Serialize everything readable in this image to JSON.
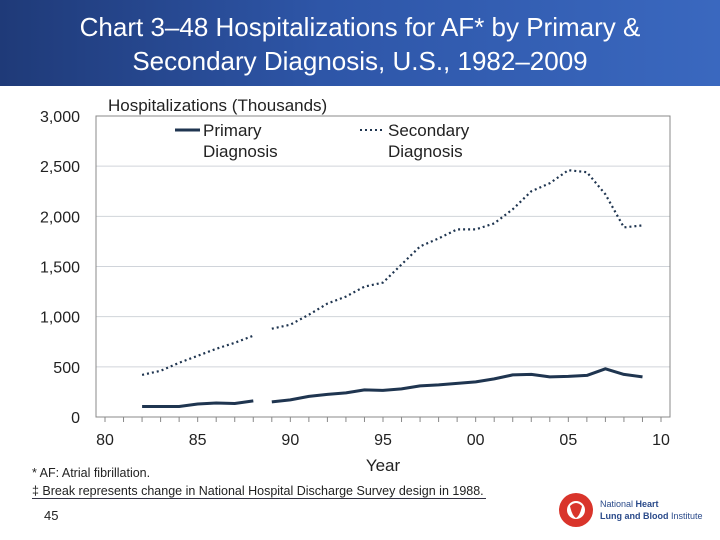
{
  "header": {
    "title_line1": "Chart 3–48 Hospitalizations for AF* by Primary &",
    "title_line2": "Secondary Diagnosis, U.S., 1982–2009"
  },
  "chart_data": {
    "type": "line",
    "ylabel": "Hospitalizations (Thousands)",
    "xlabel": "Year",
    "xlim": [
      1980,
      2010
    ],
    "ylim": [
      0,
      3000
    ],
    "x_tick_labels": [
      "80",
      "85",
      "90",
      "95",
      "00",
      "05",
      "10"
    ],
    "y_tick_labels": [
      "0",
      "500",
      "1,000",
      "1,500",
      "2,000",
      "2,500",
      "3,000"
    ],
    "grid": "horizontal",
    "legend_placement": "top",
    "x": [
      1982,
      1983,
      1984,
      1985,
      1986,
      1987,
      1988,
      1989,
      1990,
      1991,
      1992,
      1993,
      1994,
      1995,
      1996,
      1997,
      1998,
      1999,
      2000,
      2001,
      2002,
      2003,
      2004,
      2005,
      2006,
      2007,
      2008,
      2009
    ],
    "break_after": 1988,
    "series": [
      {
        "name": "Primary Diagnosis",
        "legend_line1": "Primary",
        "legend_line2": "Diagnosis",
        "style": "solid",
        "color": "#1f3550",
        "values": [
          105,
          105,
          105,
          130,
          140,
          135,
          160,
          150,
          170,
          205,
          225,
          240,
          270,
          265,
          280,
          310,
          320,
          335,
          350,
          380,
          420,
          425,
          400,
          405,
          415,
          480,
          425,
          400
        ]
      },
      {
        "name": "Secondary Diagnosis",
        "legend_line1": "Secondary",
        "legend_line2": "Diagnosis",
        "style": "dotted",
        "color": "#1f3550",
        "values": [
          420,
          460,
          540,
          610,
          680,
          740,
          810,
          880,
          920,
          1020,
          1130,
          1200,
          1300,
          1340,
          1520,
          1700,
          1780,
          1870,
          1870,
          1930,
          2070,
          2250,
          2330,
          2460,
          2440,
          2220,
          1890,
          1910
        ]
      }
    ]
  },
  "footnotes": {
    "note1": "* AF: Atrial fibrillation.",
    "note2": "‡ Break represents change in National Hospital Discharge Survey design in 1988."
  },
  "page_number": "45",
  "logo": {
    "text_line1": "National Heart",
    "text_line2": "Lung and Blood Institute",
    "color": "#d9342b"
  }
}
